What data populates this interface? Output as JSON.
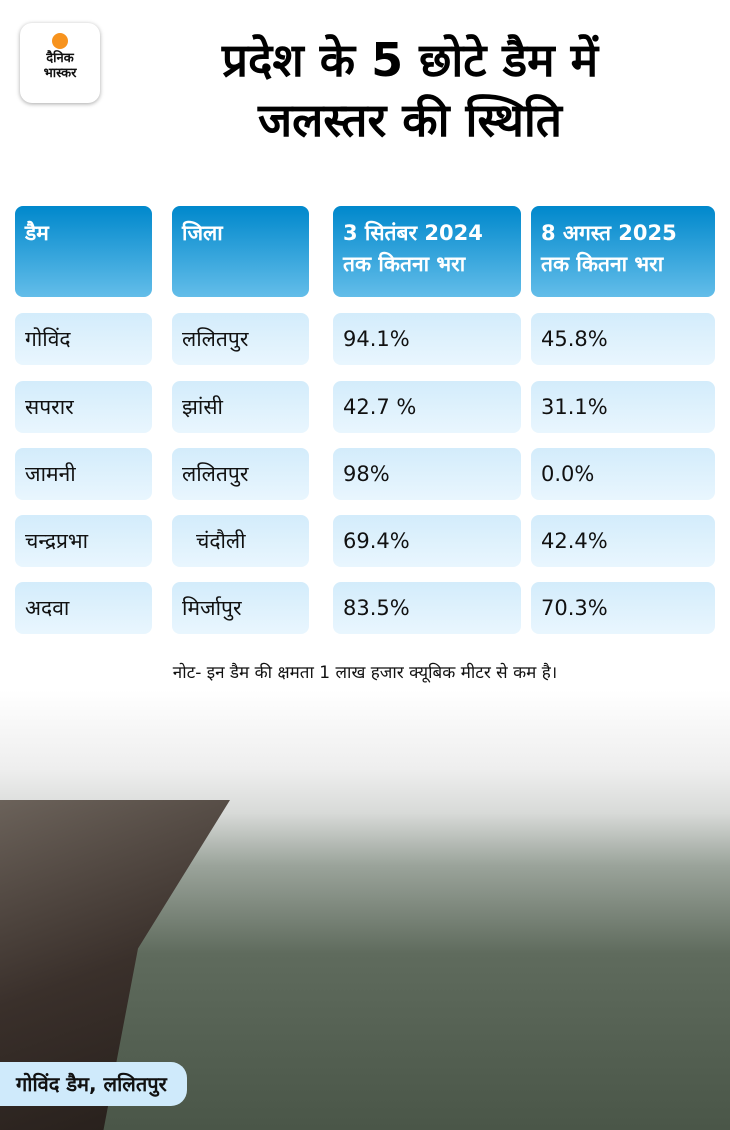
{
  "logo": {
    "line1": "दैनिक",
    "line2": "भास्कर",
    "accent": "#f7931e"
  },
  "title": {
    "line1": "प्रदेश के 5 छोटे डैम में",
    "line2": "जलस्तर की स्थिति"
  },
  "table": {
    "headers": [
      {
        "l1": "डैम",
        "l2": ""
      },
      {
        "l1": "जिला",
        "l2": ""
      },
      {
        "l1": "3 सितंबर 2024",
        "l2": "तक कितना भरा"
      },
      {
        "l1": "8 अगस्त 2025",
        "l2": "तक कितना भरा"
      }
    ],
    "rows": [
      [
        "गोविंद",
        "ललितपुर",
        "94.1%",
        "45.8%"
      ],
      [
        "सपरार",
        "झांसी",
        "42.7 %",
        "31.1%"
      ],
      [
        "जामनी",
        "ललितपुर",
        "98%",
        "0.0%"
      ],
      [
        "चन्द्रप्रभा",
        "चंदौली",
        "69.4%",
        "42.4%"
      ],
      [
        "अदवा",
        "मिर्जापुर",
        "83.5%",
        "70.3%"
      ]
    ]
  },
  "note": "नोट- इन डैम की क्षमता 1 लाख हजार क्यूबिक मीटर से कम है।",
  "caption": "गोविंद डैम, ललितपुर"
}
